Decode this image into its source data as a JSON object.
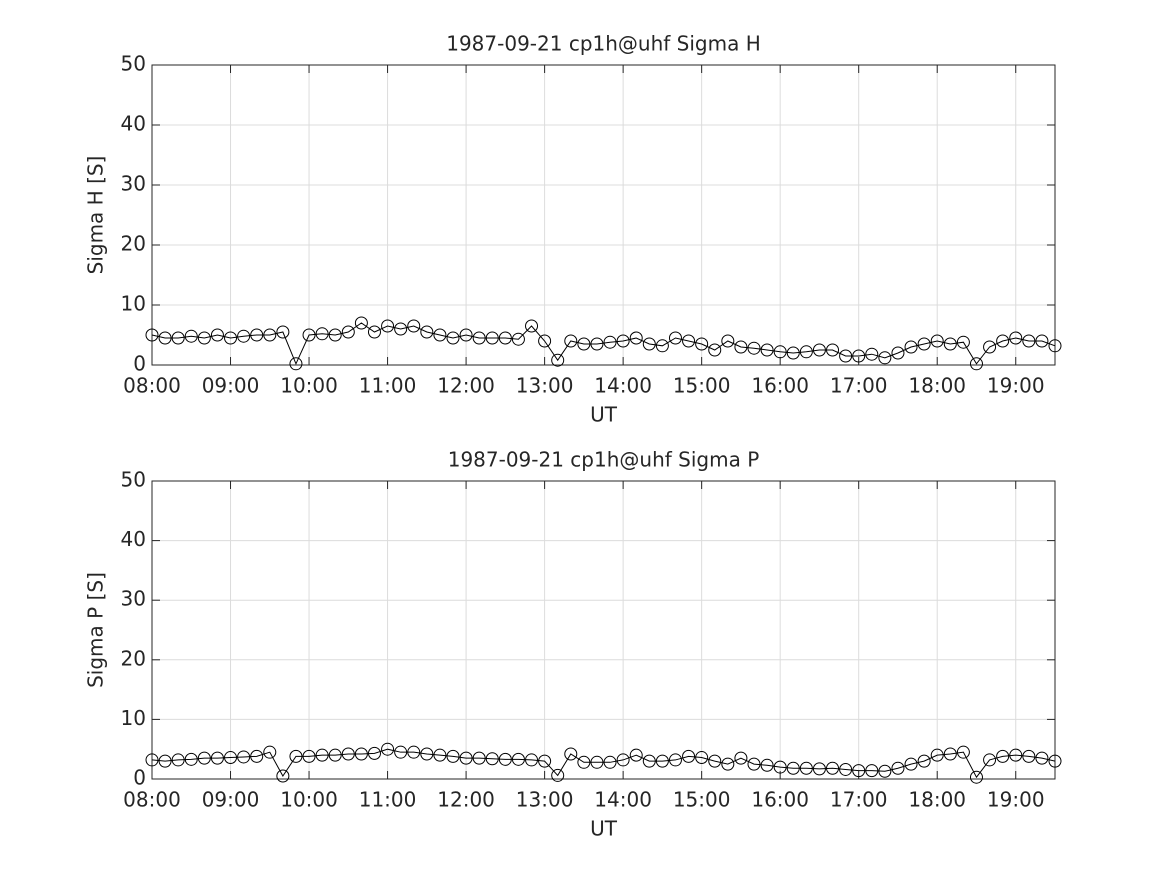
{
  "chart_data": [
    {
      "type": "line",
      "title": "1987-09-21  cp1h@uhf Sigma H",
      "xlabel": "UT",
      "ylabel": "Sigma H [S]",
      "x": [
        "08:00",
        "08:10",
        "08:20",
        "08:30",
        "08:40",
        "08:50",
        "09:00",
        "09:10",
        "09:20",
        "09:30",
        "09:40",
        "09:50",
        "10:00",
        "10:10",
        "10:20",
        "10:30",
        "10:40",
        "10:50",
        "11:00",
        "11:10",
        "11:20",
        "11:30",
        "11:40",
        "11:50",
        "12:00",
        "12:10",
        "12:20",
        "12:30",
        "12:40",
        "12:50",
        "13:00",
        "13:10",
        "13:20",
        "13:30",
        "13:40",
        "13:50",
        "14:00",
        "14:10",
        "14:20",
        "14:30",
        "14:40",
        "14:50",
        "15:00",
        "15:10",
        "15:20",
        "15:30",
        "15:40",
        "15:50",
        "16:00",
        "16:10",
        "16:20",
        "16:30",
        "16:40",
        "16:50",
        "17:00",
        "17:10",
        "17:20",
        "17:30",
        "17:40",
        "17:50",
        "18:00",
        "18:10",
        "18:20",
        "18:30",
        "18:40",
        "18:50",
        "19:00",
        "19:10",
        "19:20",
        "19:30"
      ],
      "series": [
        {
          "color": "#000000",
          "values": [
            5,
            4.5,
            4.5,
            4.8,
            4.5,
            5,
            4.5,
            4.8,
            5,
            5,
            5.5,
            0.2,
            5,
            5.2,
            5,
            5.5,
            7,
            5.5,
            6.5,
            6,
            6.5,
            5.5,
            5,
            4.5,
            5,
            4.5,
            4.5,
            4.5,
            4.3,
            6.5,
            4,
            0.8,
            4,
            3.5,
            3.5,
            3.8,
            4,
            4.5,
            3.5,
            3.2,
            4.5,
            4,
            3.5,
            2.5,
            4,
            3,
            2.8,
            2.5,
            2.2,
            2,
            2.2,
            2.5,
            2.5,
            1.5,
            1.5,
            1.8,
            1.2,
            2,
            3,
            3.5,
            4,
            3.5,
            3.8,
            0.2,
            3,
            4,
            4.5,
            4,
            4,
            3.2
          ]
        }
      ],
      "xlim": [
        "08:00",
        "19:30"
      ],
      "xticks": [
        "08:00",
        "09:00",
        "10:00",
        "11:00",
        "12:00",
        "13:00",
        "14:00",
        "15:00",
        "16:00",
        "17:00",
        "18:00",
        "19:00"
      ],
      "ylim": [
        0,
        50
      ],
      "yticks": [
        0,
        10,
        20,
        30,
        40,
        50
      ],
      "grid": true
    },
    {
      "type": "line",
      "title": "1987-09-21  cp1h@uhf Sigma P",
      "xlabel": "UT",
      "ylabel": "Sigma P [S]",
      "x": [
        "08:00",
        "08:10",
        "08:20",
        "08:30",
        "08:40",
        "08:50",
        "09:00",
        "09:10",
        "09:20",
        "09:30",
        "09:40",
        "09:50",
        "10:00",
        "10:10",
        "10:20",
        "10:30",
        "10:40",
        "10:50",
        "11:00",
        "11:10",
        "11:20",
        "11:30",
        "11:40",
        "11:50",
        "12:00",
        "12:10",
        "12:20",
        "12:30",
        "12:40",
        "12:50",
        "13:00",
        "13:10",
        "13:20",
        "13:30",
        "13:40",
        "13:50",
        "14:00",
        "14:10",
        "14:20",
        "14:30",
        "14:40",
        "14:50",
        "15:00",
        "15:10",
        "15:20",
        "15:30",
        "15:40",
        "15:50",
        "16:00",
        "16:10",
        "16:20",
        "16:30",
        "16:40",
        "16:50",
        "17:00",
        "17:10",
        "17:20",
        "17:30",
        "17:40",
        "17:50",
        "18:00",
        "18:10",
        "18:20",
        "18:30",
        "18:40",
        "18:50",
        "19:00",
        "19:10",
        "19:20",
        "19:30"
      ],
      "series": [
        {
          "color": "#000000",
          "values": [
            3.2,
            3,
            3.2,
            3.3,
            3.5,
            3.5,
            3.6,
            3.7,
            3.8,
            4.5,
            0.5,
            3.8,
            3.8,
            4,
            4,
            4.2,
            4.2,
            4.3,
            5,
            4.5,
            4.5,
            4.2,
            4,
            3.8,
            3.5,
            3.5,
            3.4,
            3.3,
            3.3,
            3.2,
            3,
            0.6,
            4.2,
            2.8,
            2.8,
            2.8,
            3.2,
            4,
            3,
            3,
            3.2,
            3.8,
            3.6,
            3,
            2.5,
            3.5,
            2.5,
            2.3,
            2,
            1.8,
            1.8,
            1.7,
            1.8,
            1.6,
            1.4,
            1.4,
            1.3,
            1.8,
            2.5,
            3,
            4,
            4.2,
            4.5,
            0.3,
            3.2,
            3.8,
            4,
            3.8,
            3.5,
            3
          ]
        }
      ],
      "xlim": [
        "08:00",
        "19:30"
      ],
      "xticks": [
        "08:00",
        "09:00",
        "10:00",
        "11:00",
        "12:00",
        "13:00",
        "14:00",
        "15:00",
        "16:00",
        "17:00",
        "18:00",
        "19:00"
      ],
      "ylim": [
        0,
        50
      ],
      "yticks": [
        0,
        10,
        20,
        30,
        40,
        50
      ],
      "grid": true
    }
  ]
}
